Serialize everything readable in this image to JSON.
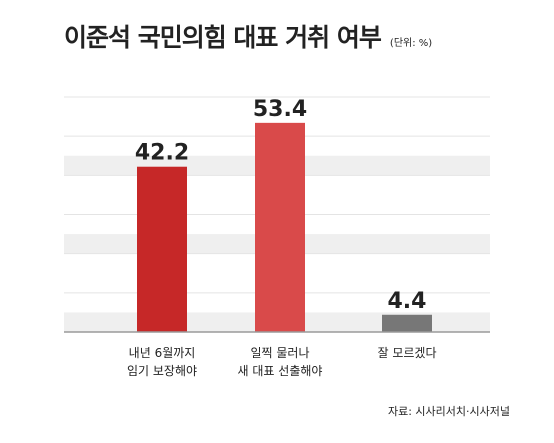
{
  "header": {
    "title": "이준석 국민의힘 대표 거취 여부",
    "unit": "(단위: %)"
  },
  "source": "자료: 시사리서치·시사저널",
  "colors": {
    "bar1": "#c62828",
    "bar2": "#d94a4a",
    "bar3": "#777777",
    "band": "#efefef"
  },
  "chart_data": {
    "type": "bar",
    "title": "이준석 국민의힘 대표 거취 여부",
    "unit": "(단위: %)",
    "categories": [
      [
        "내년 6월까지",
        "임기 보장해야"
      ],
      [
        "일찍 물러나",
        "새 대표 선출해야"
      ],
      [
        "잘 모르겠다"
      ]
    ],
    "values": [
      42.2,
      53.4,
      4.4
    ],
    "value_labels": [
      "42.2",
      "53.4",
      "4.4"
    ],
    "ylim": [
      0,
      60
    ],
    "grid": true,
    "legend": "none"
  }
}
